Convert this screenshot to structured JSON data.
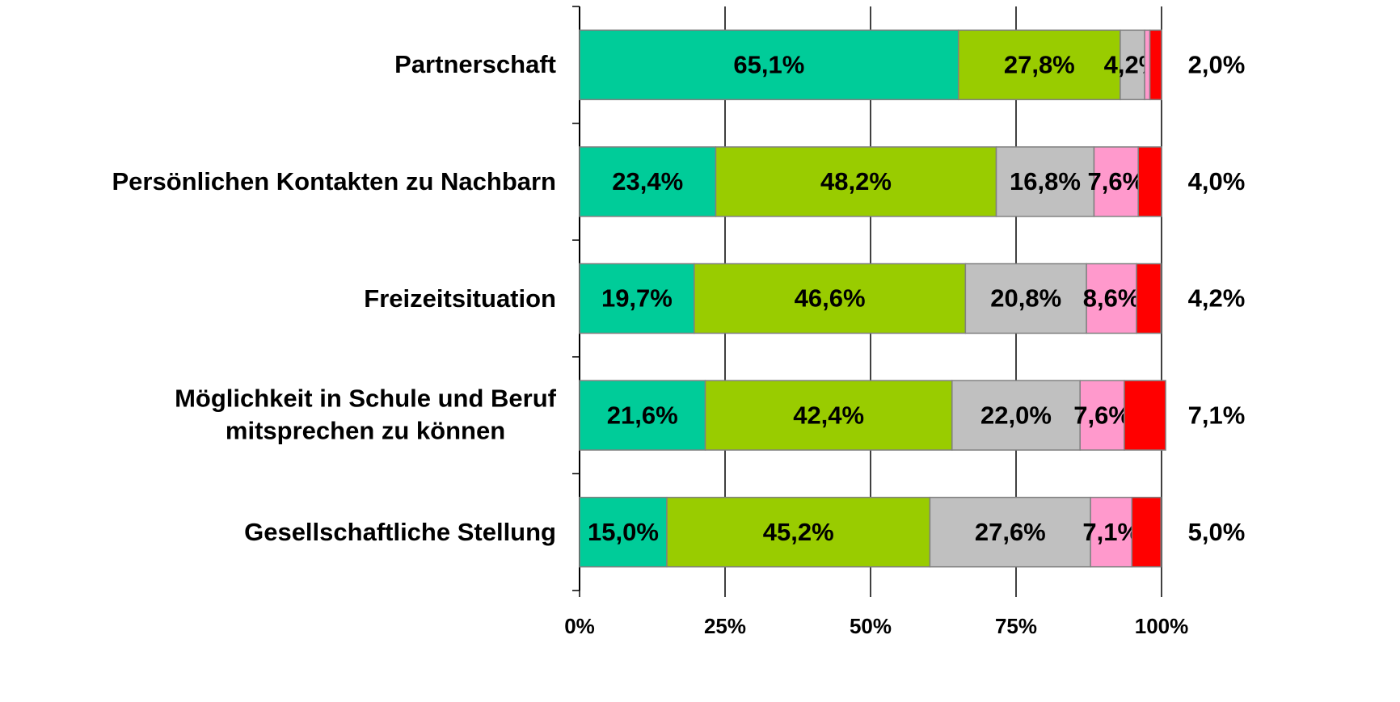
{
  "chart_data": {
    "type": "stacked-barh",
    "categories": [
      "Partnerschaft",
      "Persönlichen Kontakten zu Nachbarn",
      "Freizeitsituation",
      "Möglichkeit in Schule und Beruf\nmitsprechen zu können",
      "Gesellschaftliche Stellung"
    ],
    "series": [
      {
        "color": "#00cc99",
        "values": [
          65.1,
          23.4,
          19.7,
          21.6,
          15.0
        ],
        "value_labels": [
          "65,1%",
          "23,4%",
          "19,7%",
          "21,6%",
          "15,0%"
        ]
      },
      {
        "color": "#99cc00",
        "values": [
          27.8,
          48.2,
          46.6,
          42.4,
          45.2
        ],
        "value_labels": [
          "27,8%",
          "48,2%",
          "46,6%",
          "42,4%",
          "45,2%"
        ]
      },
      {
        "color": "#c0c0c0",
        "values": [
          4.2,
          16.8,
          20.8,
          22.0,
          27.6
        ],
        "value_labels": [
          "4,2%",
          "16,8%",
          "20,8%",
          "22,0%",
          "27,6%"
        ]
      },
      {
        "color": "#ff99cc",
        "values": [
          0.9,
          7.6,
          8.6,
          7.6,
          7.1
        ],
        "value_labels": [
          null,
          "7,6%",
          "8,6%",
          "7,6%",
          "7,1%"
        ]
      },
      {
        "color": "#ff0000",
        "values": [
          2.0,
          4.0,
          4.2,
          7.1,
          5.0
        ],
        "value_labels": [
          "2,0%",
          "4,0%",
          "4,2%",
          "7,1%",
          "5,0%"
        ],
        "labels_outside": true
      }
    ],
    "xlim": [
      0,
      100
    ],
    "xticks": [
      {
        "value": 0,
        "label": "0%"
      },
      {
        "value": 25,
        "label": "25%"
      },
      {
        "value": 50,
        "label": "50%"
      },
      {
        "value": 75,
        "label": "75%"
      },
      {
        "value": 100,
        "label": "100%"
      }
    ],
    "grid": true
  }
}
